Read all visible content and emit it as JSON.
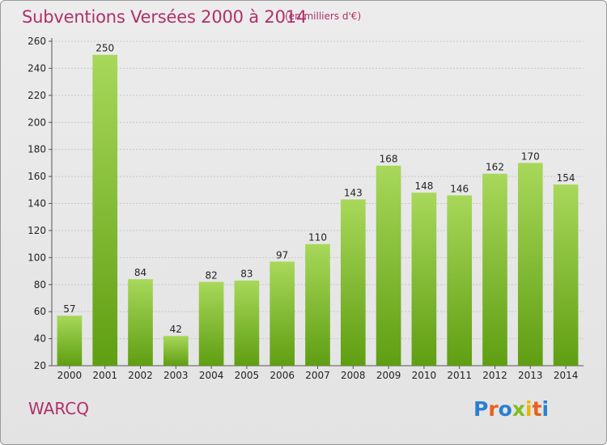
{
  "header": {
    "title": "Subventions Versées 2000 à 2014",
    "subtitle": "(en milliers d'€)"
  },
  "footer": {
    "commune": "WARCQ",
    "logo_text": "Proxiti"
  },
  "colors": {
    "accent_text": "#b0306a",
    "bar_light": "#a8d85a",
    "bar_dark": "#5f9e12",
    "logo_letters": [
      "#2a7fd0",
      "#e8611c",
      "#2a7fd0",
      "#7fbf1f",
      "#f0b400",
      "#e8611c",
      "#2a7fd0"
    ]
  },
  "chart_data": {
    "type": "bar",
    "categories": [
      "2000",
      "2001",
      "2002",
      "2003",
      "2004",
      "2005",
      "2006",
      "2007",
      "2008",
      "2009",
      "2010",
      "2011",
      "2012",
      "2013",
      "2014"
    ],
    "values": [
      57,
      250,
      84,
      42,
      82,
      83,
      97,
      110,
      143,
      168,
      148,
      146,
      162,
      170,
      154
    ],
    "title": "Subventions Versées 2000 à 2014",
    "subtitle": "(en milliers d'€)",
    "ylim": [
      20,
      260
    ],
    "yticks": [
      20,
      40,
      60,
      80,
      100,
      120,
      140,
      160,
      180,
      200,
      220,
      240,
      260
    ],
    "grid": true,
    "legend": "none"
  }
}
